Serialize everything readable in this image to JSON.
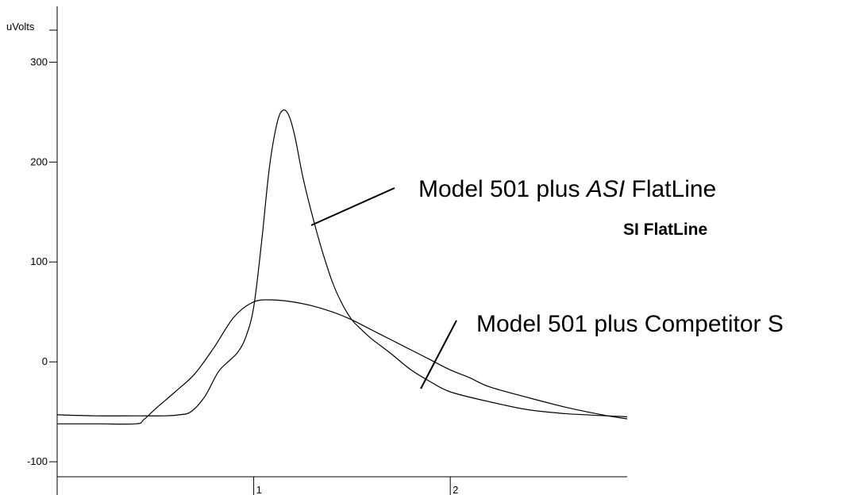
{
  "chart_data": {
    "type": "line",
    "title": "",
    "ylabel": "uVolts",
    "xlabel": "",
    "xlim": [
      0,
      2.9
    ],
    "ylim": [
      -115,
      340
    ],
    "y_ticks": [
      {
        "value": 300,
        "label": "300"
      },
      {
        "value": 200,
        "label": "200"
      },
      {
        "value": 100,
        "label": "100"
      },
      {
        "value": 0,
        "label": "0"
      },
      {
        "value": -100,
        "label": "-100"
      }
    ],
    "x_ticks": [
      {
        "value": 1,
        "label": "1"
      },
      {
        "value": 2,
        "label": "2"
      }
    ],
    "grid": false,
    "series": [
      {
        "name": "Model 501 plus ASI FlatLine",
        "x": [
          0.0,
          0.2,
          0.4,
          0.55,
          0.62,
          0.68,
          0.75,
          0.82,
          0.88,
          0.92,
          0.96,
          1.0,
          1.04,
          1.08,
          1.12,
          1.15,
          1.18,
          1.21,
          1.25,
          1.3,
          1.35,
          1.4,
          1.45,
          1.5,
          1.55,
          1.6,
          1.7,
          1.8,
          1.9,
          2.0,
          2.2,
          2.4,
          2.6,
          2.8,
          2.9
        ],
        "y": [
          -53,
          -54,
          -54,
          -54,
          -53,
          -50,
          -35,
          -10,
          2,
          10,
          25,
          55,
          120,
          195,
          240,
          252,
          246,
          225,
          185,
          145,
          110,
          80,
          58,
          42,
          32,
          23,
          8,
          -8,
          -20,
          -30,
          -40,
          -48,
          -52,
          -54,
          -55
        ]
      },
      {
        "name": "Model 501 plus Competitor S",
        "x": [
          0.0,
          0.2,
          0.4,
          0.44,
          0.5,
          0.6,
          0.7,
          0.8,
          0.9,
          1.0,
          1.1,
          1.2,
          1.3,
          1.4,
          1.5,
          1.6,
          1.7,
          1.8,
          1.9,
          2.0,
          2.1,
          2.2,
          2.4,
          2.6,
          2.8,
          2.9
        ],
        "y": [
          -62,
          -62,
          -62,
          -58,
          -47,
          -30,
          -12,
          15,
          45,
          60,
          62,
          60,
          56,
          50,
          42,
          32,
          22,
          12,
          2,
          -8,
          -16,
          -25,
          -36,
          -46,
          -54,
          -57
        ]
      }
    ],
    "annotations": [
      {
        "text_pre": "Model 501 plus ",
        "text_italic": "ASI",
        "text_post": " FlatLine",
        "series": 0
      },
      {
        "text": "SI FlatLine"
      },
      {
        "text": "Model 501 plus Competitor S",
        "series": 1
      }
    ]
  }
}
